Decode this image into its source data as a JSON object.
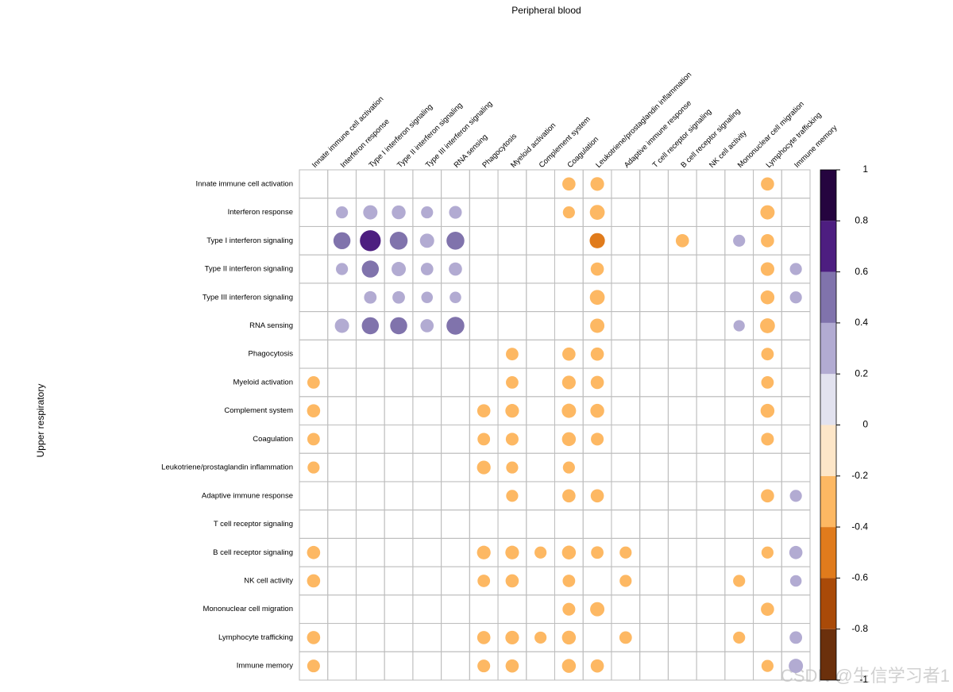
{
  "chart_data": {
    "type": "corrplot",
    "title": "Peripheral blood",
    "ylabel": "Upper respiratory",
    "watermark": "CSDN @生信学习者1",
    "rows": [
      "Innate immune cell activation",
      "Interferon response",
      "Type I interferon signaling",
      "Type II interferon signaling",
      "Type III interferon signaling",
      "RNA sensing",
      "Phagocytosis",
      "Myeloid activation",
      "Complement system",
      "Coagulation",
      "Leukotriene/prostaglandin inflammation",
      "Adaptive immune response",
      "T cell receptor signaling",
      "B cell receptor signaling",
      "NK cell activity",
      "Mononuclear cell migration",
      "Lymphocyte trafficking",
      "Immune memory"
    ],
    "columns": [
      "Innate immune cell activation",
      "Interferon response",
      "Type I interferon signaling",
      "Type II interferon signaling",
      "Type III interferon signaling",
      "RNA sensing",
      "Phagocytosis",
      "Myeloid activation",
      "Complement system",
      "Coagulation",
      "Leukotriene/prostaglandin inflammation",
      "Adaptive immune response",
      "T cell receptor signaling",
      "B cell receptor signaling",
      "NK cell activity",
      "Mononuclear cell migration",
      "Lymphocyte trafficking",
      "Immune memory"
    ],
    "matrix": [
      [
        null,
        null,
        null,
        null,
        null,
        null,
        null,
        null,
        null,
        -0.3,
        -0.32,
        null,
        null,
        null,
        null,
        null,
        -0.3,
        null
      ],
      [
        null,
        0.25,
        0.35,
        0.33,
        0.25,
        0.28,
        null,
        null,
        null,
        -0.25,
        -0.38,
        null,
        null,
        null,
        null,
        null,
        -0.35,
        null
      ],
      [
        null,
        0.5,
        0.75,
        0.55,
        0.35,
        0.55,
        null,
        null,
        null,
        null,
        -0.4,
        null,
        null,
        -0.3,
        null,
        0.25,
        -0.3,
        null
      ],
      [
        null,
        0.25,
        0.5,
        0.35,
        0.27,
        0.3,
        null,
        null,
        null,
        null,
        -0.3,
        null,
        null,
        null,
        null,
        null,
        -0.32,
        0.25
      ],
      [
        null,
        null,
        0.27,
        0.27,
        0.23,
        0.23,
        null,
        null,
        null,
        null,
        -0.38,
        null,
        null,
        null,
        null,
        null,
        -0.33,
        0.25
      ],
      [
        null,
        0.35,
        0.5,
        0.5,
        0.3,
        0.55,
        null,
        null,
        null,
        null,
        -0.35,
        null,
        null,
        null,
        null,
        0.22,
        -0.38,
        null
      ],
      [
        null,
        null,
        null,
        null,
        null,
        null,
        null,
        -0.27,
        null,
        -0.3,
        -0.3,
        null,
        null,
        null,
        null,
        null,
        -0.27,
        null
      ],
      [
        -0.27,
        null,
        null,
        null,
        null,
        null,
        null,
        -0.27,
        null,
        -0.32,
        -0.3,
        null,
        null,
        null,
        null,
        null,
        -0.27,
        null
      ],
      [
        -0.3,
        null,
        null,
        null,
        null,
        null,
        -0.3,
        -0.32,
        null,
        -0.35,
        -0.33,
        null,
        null,
        null,
        null,
        null,
        -0.33,
        null
      ],
      [
        -0.27,
        null,
        null,
        null,
        null,
        null,
        -0.27,
        -0.28,
        null,
        -0.33,
        -0.28,
        null,
        null,
        null,
        null,
        null,
        -0.28,
        null
      ],
      [
        -0.25,
        null,
        null,
        null,
        null,
        null,
        -0.32,
        -0.25,
        null,
        -0.25,
        null,
        null,
        null,
        null,
        null,
        null,
        null,
        null
      ],
      [
        null,
        null,
        null,
        null,
        null,
        null,
        null,
        -0.25,
        null,
        -0.3,
        -0.3,
        null,
        null,
        null,
        null,
        null,
        -0.3,
        0.25
      ],
      [
        null,
        null,
        null,
        null,
        null,
        null,
        null,
        null,
        null,
        null,
        null,
        null,
        null,
        null,
        null,
        null,
        null,
        null
      ],
      [
        -0.3,
        null,
        null,
        null,
        null,
        null,
        -0.32,
        -0.32,
        -0.25,
        -0.33,
        -0.27,
        -0.25,
        null,
        null,
        null,
        null,
        -0.25,
        0.3
      ],
      [
        -0.3,
        null,
        null,
        null,
        null,
        null,
        -0.27,
        -0.3,
        null,
        -0.27,
        null,
        -0.25,
        null,
        null,
        null,
        -0.25,
        null,
        0.23
      ],
      [
        null,
        null,
        null,
        null,
        null,
        null,
        null,
        null,
        null,
        -0.28,
        -0.35,
        null,
        null,
        null,
        null,
        null,
        -0.3,
        null
      ],
      [
        -0.3,
        null,
        null,
        null,
        null,
        null,
        -0.3,
        -0.32,
        -0.25,
        -0.33,
        null,
        -0.27,
        null,
        null,
        null,
        -0.25,
        null,
        0.27
      ],
      [
        -0.28,
        null,
        null,
        null,
        null,
        null,
        -0.28,
        -0.3,
        null,
        -0.33,
        -0.3,
        null,
        null,
        null,
        null,
        null,
        -0.25,
        0.35
      ]
    ],
    "colorbar": {
      "colors": [
        "#6b300c",
        "#a94a08",
        "#e07b1c",
        "#fdb863",
        "#fde6c8",
        "#e2e2ef",
        "#b2abd2",
        "#8073ac",
        "#4d1e80",
        "#25043f"
      ],
      "lim": [
        -1,
        1
      ],
      "ticks": [
        -1,
        -0.8,
        -0.6,
        -0.4,
        -0.2,
        0,
        0.2,
        0.4,
        0.6,
        0.8,
        1
      ]
    }
  }
}
